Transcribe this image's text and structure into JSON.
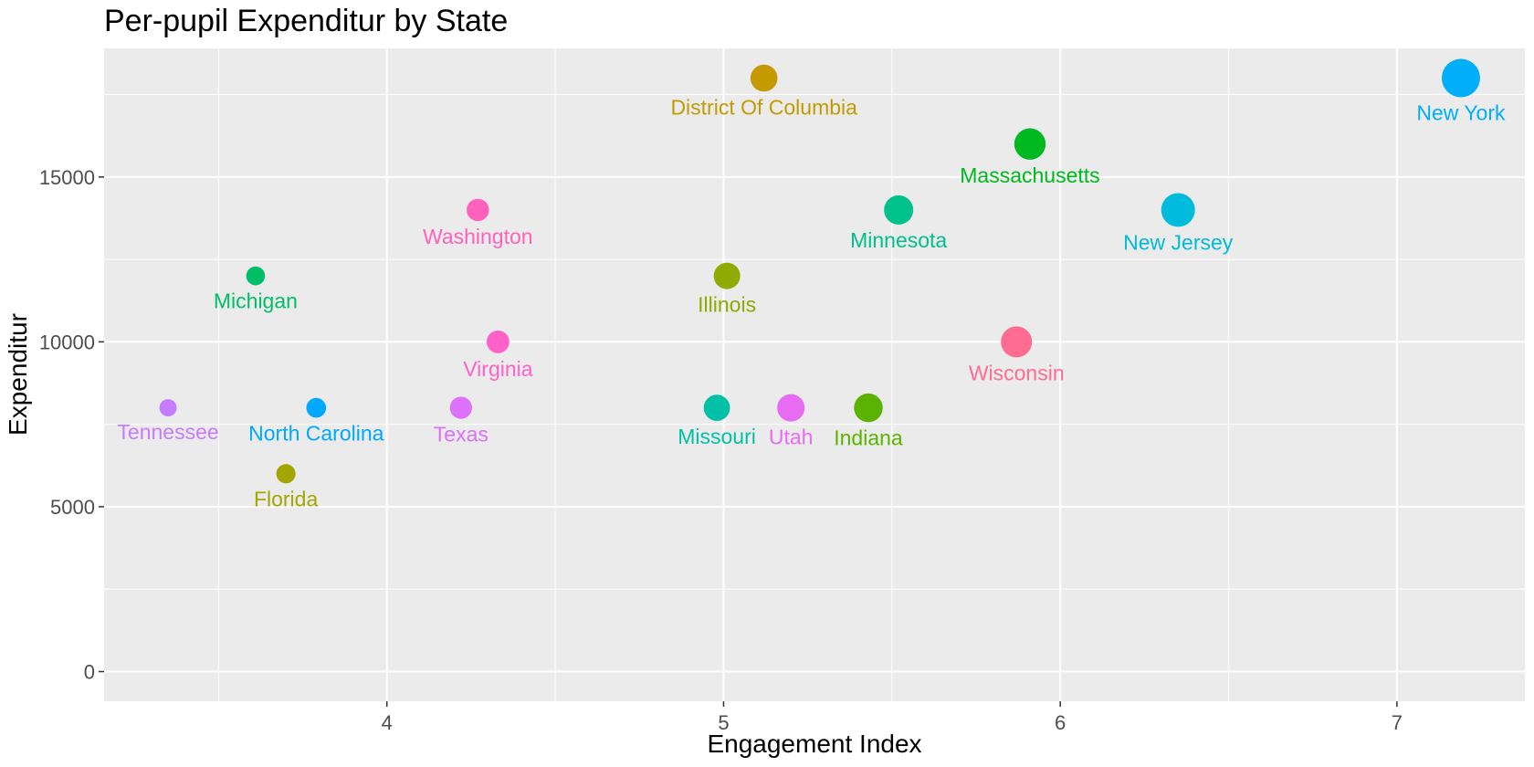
{
  "chart_data": {
    "type": "scatter",
    "title": "Per-pupil Expenditur by State",
    "xlabel": "Engagement Index",
    "ylabel": "Expenditur",
    "xlim": [
      3.16,
      7.38
    ],
    "ylim": [
      -900,
      18900
    ],
    "x_ticks": [
      4,
      5,
      6,
      7
    ],
    "x_tick_labels": [
      "4",
      "5",
      "6",
      "7"
    ],
    "y_ticks": [
      0,
      5000,
      10000,
      15000
    ],
    "y_tick_labels": [
      "0",
      "5000",
      "10000",
      "15000"
    ],
    "grid": true,
    "legend": "none",
    "size_encodes": "Engagement Index",
    "points": [
      {
        "label": "Tennessee",
        "x": 3.35,
        "y": 8000,
        "color": "#C77CFF"
      },
      {
        "label": "Michigan",
        "x": 3.61,
        "y": 12000,
        "color": "#00BE67"
      },
      {
        "label": "Florida",
        "x": 3.7,
        "y": 6000,
        "color": "#A3A500"
      },
      {
        "label": "North Carolina",
        "x": 3.79,
        "y": 8000,
        "color": "#00A9FF"
      },
      {
        "label": "Texas",
        "x": 4.22,
        "y": 8000,
        "color": "#DC71FA"
      },
      {
        "label": "Washington",
        "x": 4.27,
        "y": 14000,
        "color": "#FF62BC"
      },
      {
        "label": "Virginia",
        "x": 4.33,
        "y": 10000,
        "color": "#FF61C9"
      },
      {
        "label": "Missouri",
        "x": 4.98,
        "y": 8000,
        "color": "#00C1A7"
      },
      {
        "label": "Illinois",
        "x": 5.01,
        "y": 12000,
        "color": "#8FAA00"
      },
      {
        "label": "District Of Columbia",
        "x": 5.12,
        "y": 18000,
        "color": "#C49A00"
      },
      {
        "label": "Utah",
        "x": 5.2,
        "y": 8000,
        "color": "#E76BF3"
      },
      {
        "label": "Indiana",
        "x": 5.43,
        "y": 8000,
        "color": "#5BB300"
      },
      {
        "label": "Minnesota",
        "x": 5.52,
        "y": 14000,
        "color": "#00C08B"
      },
      {
        "label": "Wisconsin",
        "x": 5.87,
        "y": 10000,
        "color": "#FF6C91"
      },
      {
        "label": "Massachusetts",
        "x": 5.91,
        "y": 16000,
        "color": "#00B81F"
      },
      {
        "label": "New Jersey",
        "x": 6.35,
        "y": 14000,
        "color": "#00BBDB"
      },
      {
        "label": "New York",
        "x": 7.19,
        "y": 18000,
        "color": "#00AEFA"
      }
    ]
  }
}
